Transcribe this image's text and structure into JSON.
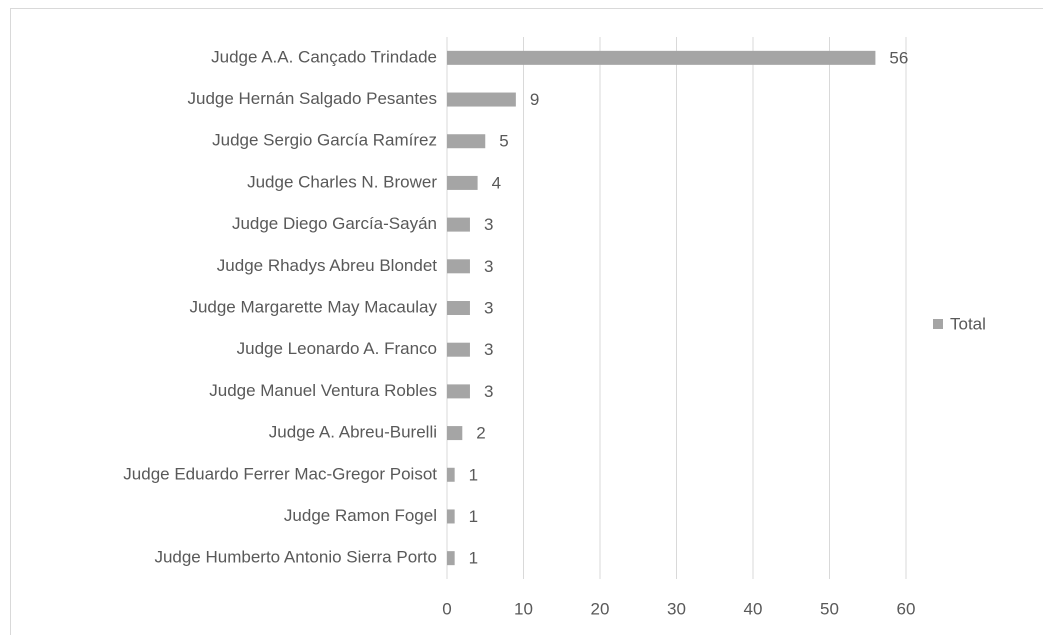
{
  "chart_data": {
    "type": "bar",
    "orientation": "horizontal",
    "categories": [
      "Judge A.A. Cançado Trindade",
      "Judge Hernán Salgado Pesantes",
      "Judge Sergio García Ramírez",
      "Judge Charles N. Brower",
      "Judge Diego García-Sayán",
      "Judge Rhadys Abreu Blondet",
      "Judge Margarette May Macaulay",
      "Judge Leonardo A. Franco",
      "Judge Manuel Ventura Robles",
      "Judge A. Abreu-Burelli",
      "Judge Eduardo Ferrer Mac-Gregor Poisot",
      "Judge Ramon Fogel",
      "Judge Humberto Antonio Sierra Porto"
    ],
    "series": [
      {
        "name": "Total",
        "color": "#a5a5a5",
        "values": [
          56,
          9,
          5,
          4,
          3,
          3,
          3,
          3,
          3,
          2,
          1,
          1,
          1
        ]
      }
    ],
    "xlim": [
      0,
      60
    ],
    "xticks": [
      0,
      10,
      20,
      30,
      40,
      50,
      60
    ],
    "grid": true,
    "legend": "right",
    "data_labels": true
  }
}
